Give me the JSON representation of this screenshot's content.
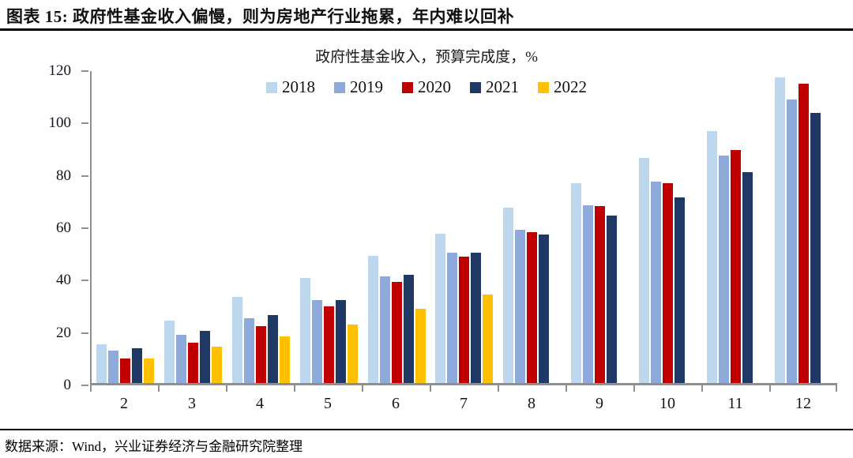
{
  "header": {
    "title": "图表 15: 政府性基金收入偏慢，则为房地产行业拖累，年内难以回补"
  },
  "footer": {
    "source": "数据来源：Wind，兴业证券经济与金融研究院整理"
  },
  "chart_data": {
    "type": "bar",
    "title": "政府性基金收入，预算完成度，%",
    "categories": [
      "2",
      "3",
      "4",
      "5",
      "6",
      "7",
      "8",
      "9",
      "10",
      "11",
      "12"
    ],
    "series": [
      {
        "name": "2018",
        "color": "#BDD7EE",
        "values": [
          15,
          24,
          33,
          40.5,
          49,
          57.5,
          67.5,
          77,
          86.5,
          97,
          117.5
        ]
      },
      {
        "name": "2019",
        "color": "#8EAADB",
        "values": [
          12.5,
          18.5,
          25,
          32,
          41,
          50,
          59,
          68.5,
          77.5,
          87.5,
          109
        ]
      },
      {
        "name": "2020",
        "color": "#C00000",
        "values": [
          9.5,
          15.5,
          22,
          29.5,
          39,
          48.5,
          58,
          68,
          77,
          89.5,
          115
        ]
      },
      {
        "name": "2021",
        "color": "#1F3864",
        "values": [
          13.5,
          20,
          26,
          32,
          41.5,
          50,
          57,
          64.5,
          71.5,
          81,
          104
        ]
      },
      {
        "name": "2022",
        "color": "#FFC000",
        "values": [
          9.5,
          14,
          18,
          22.5,
          28.5,
          34,
          null,
          null,
          null,
          null,
          null
        ]
      }
    ],
    "ylim": [
      0,
      120
    ],
    "yticks": [
      0,
      20,
      40,
      60,
      80,
      100,
      120
    ],
    "grid": false,
    "legend_position": "top",
    "axis_color": "#8f8f8f"
  }
}
